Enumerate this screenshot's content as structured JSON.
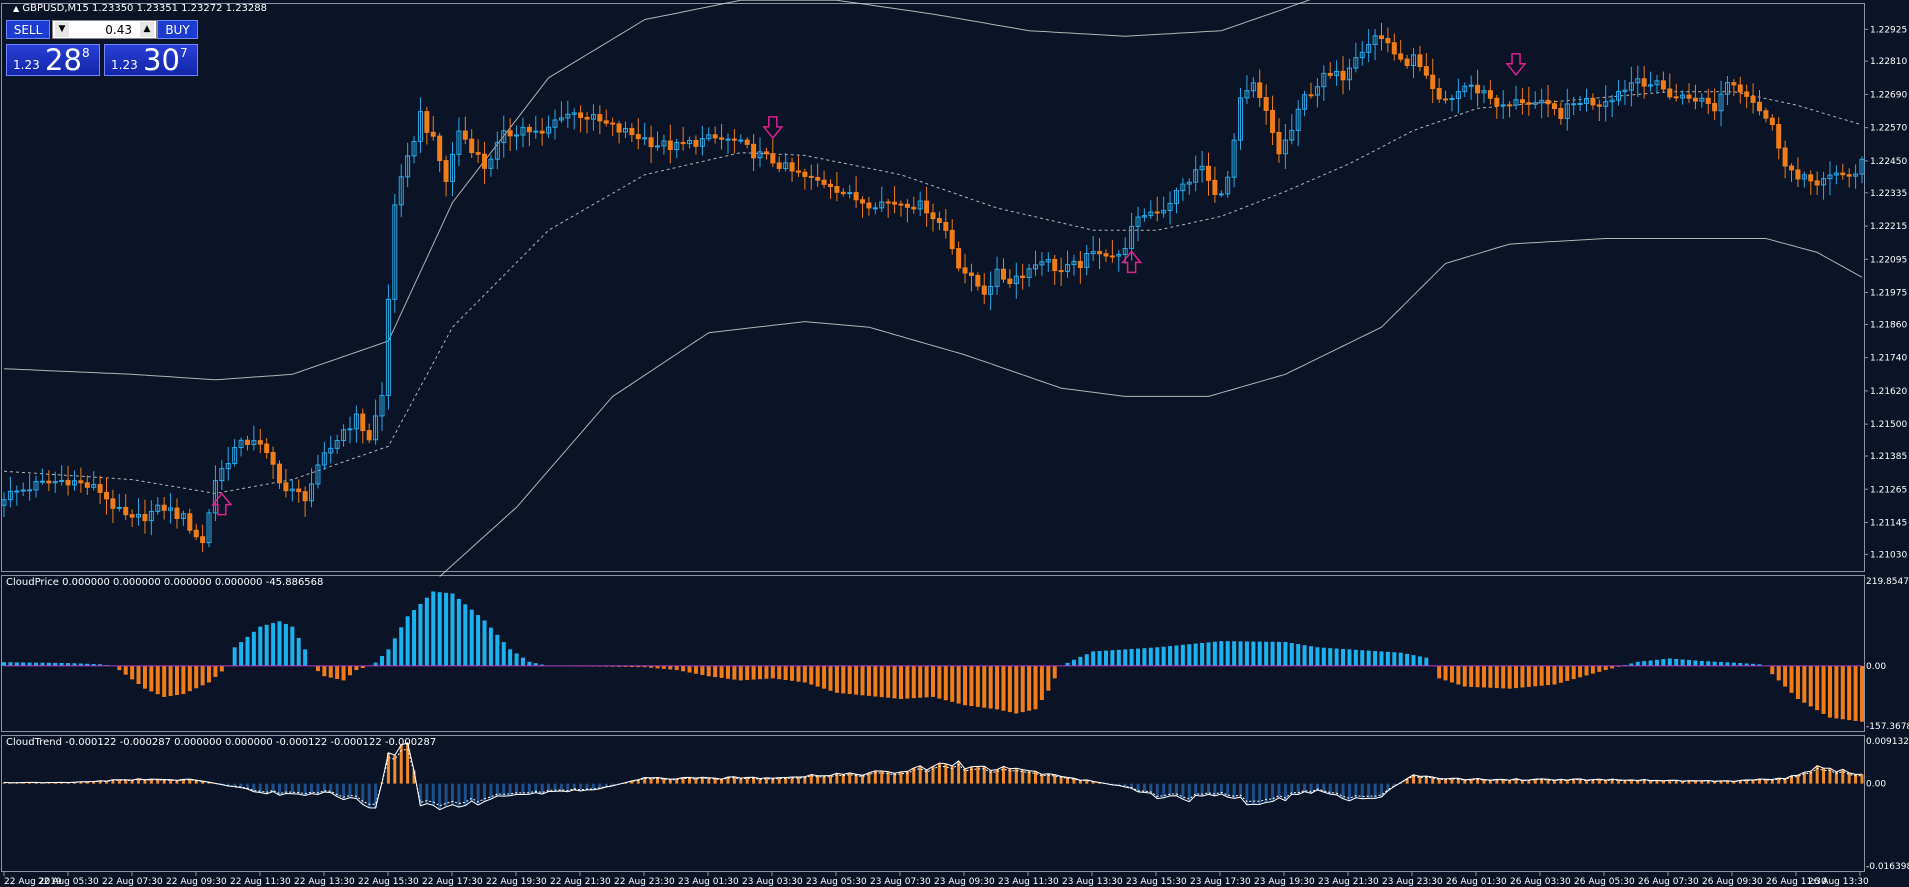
{
  "chart_header": {
    "symbol_line": "GBPUSD,M15  1.23350 1.23351 1.23272 1.23288",
    "cloudprice_line": "CloudPrice 0.000000 0.000000 0.000000 0.000000 -45.886568",
    "cloudtrend_line": "CloudTrend -0.000122 -0.000287 0.000000 0.000000 -0.000122 -0.000122 -0.000287"
  },
  "trade_panel": {
    "sell_label": "SELL",
    "buy_label": "BUY",
    "lot_value": "0.43",
    "sell_prefix": "1.23",
    "sell_big": "28",
    "sell_sup": "8",
    "buy_prefix": "1.23",
    "buy_big": "30",
    "buy_sup": "7"
  },
  "colors": {
    "background": "#0a1426",
    "bull": "#29a9e8",
    "bear": "#f07d1a",
    "hist_bull": "#1ab2f0",
    "hist_bear": "#f07d1a",
    "trend_bull": "#1d4f8c",
    "trend_bear": "#f08a2a",
    "band": "#d0d0d0",
    "signal_arrow": "#e0208f",
    "grid_border": "#8a93a6"
  },
  "chart_data": [
    {
      "type": "candlestick",
      "panel": "main",
      "ylim": [
        1.2097,
        1.2302
      ],
      "y_ticks": [
        "1.22925",
        "1.22810",
        "1.22690",
        "1.22570",
        "1.22450",
        "1.22335",
        "1.22215",
        "1.22095",
        "1.21975",
        "1.21860",
        "1.21740",
        "1.21620",
        "1.21500",
        "1.21385",
        "1.21265",
        "1.21145",
        "1.21030"
      ],
      "x_labels": [
        "22 Aug 2019",
        "22 Aug 05:30",
        "22 Aug 07:30",
        "22 Aug 09:30",
        "22 Aug 11:30",
        "22 Aug 13:30",
        "22 Aug 15:30",
        "22 Aug 17:30",
        "22 Aug 19:30",
        "22 Aug 21:30",
        "22 Aug 23:30",
        "23 Aug 01:30",
        "23 Aug 03:30",
        "23 Aug 05:30",
        "23 Aug 07:30",
        "23 Aug 09:30",
        "23 Aug 11:30",
        "23 Aug 13:30",
        "23 Aug 15:30",
        "23 Aug 17:30",
        "23 Aug 19:30",
        "23 Aug 21:30",
        "23 Aug 23:30",
        "26 Aug 01:30",
        "26 Aug 03:30",
        "26 Aug 05:30",
        "26 Aug 07:30",
        "26 Aug 09:30",
        "26 Aug 11:30",
        "26 Aug 13:30"
      ],
      "close_path": [
        [
          0,
          1.2124
        ],
        [
          5,
          1.2128
        ],
        [
          10,
          1.213
        ],
        [
          15,
          1.2126
        ],
        [
          18,
          1.2118
        ],
        [
          20,
          1.2115
        ],
        [
          25,
          1.212
        ],
        [
          28,
          1.2116
        ],
        [
          31,
          1.2107
        ],
        [
          33,
          1.213
        ],
        [
          36,
          1.2141
        ],
        [
          39,
          1.2145
        ],
        [
          42,
          1.2135
        ],
        [
          44,
          1.2126
        ],
        [
          47,
          1.2124
        ],
        [
          50,
          1.2138
        ],
        [
          53,
          1.2148
        ],
        [
          55,
          1.2152
        ],
        [
          57,
          1.2145
        ],
        [
          59,
          1.216
        ],
        [
          61,
          1.223
        ],
        [
          63,
          1.2245
        ],
        [
          65,
          1.2262
        ],
        [
          67,
          1.2252
        ],
        [
          69,
          1.2238
        ],
        [
          71,
          1.2256
        ],
        [
          73,
          1.225
        ],
        [
          75,
          1.2243
        ],
        [
          78,
          1.2254
        ],
        [
          81,
          1.2257
        ],
        [
          84,
          1.2254
        ],
        [
          87,
          1.2262
        ],
        [
          90,
          1.2262
        ],
        [
          93,
          1.2259
        ],
        [
          96,
          1.2256
        ],
        [
          99,
          1.2254
        ],
        [
          102,
          1.2251
        ],
        [
          105,
          1.225
        ],
        [
          108,
          1.2252
        ],
        [
          111,
          1.2253
        ],
        [
          114,
          1.2252
        ],
        [
          117,
          1.2248
        ],
        [
          120,
          1.2245
        ],
        [
          123,
          1.2241
        ],
        [
          126,
          1.2238
        ],
        [
          129,
          1.2237
        ],
        [
          132,
          1.2232
        ],
        [
          135,
          1.223
        ],
        [
          138,
          1.223
        ],
        [
          141,
          1.223
        ],
        [
          144,
          1.2228
        ],
        [
          147,
          1.222
        ],
        [
          149,
          1.2208
        ],
        [
          151,
          1.2202
        ],
        [
          153,
          1.2198
        ],
        [
          155,
          1.2204
        ],
        [
          157,
          1.2202
        ],
        [
          160,
          1.2206
        ],
        [
          162,
          1.221
        ],
        [
          165,
          1.2205
        ],
        [
          168,
          1.2208
        ],
        [
          171,
          1.2213
        ],
        [
          174,
          1.221
        ],
        [
          176,
          1.222
        ],
        [
          178,
          1.2226
        ],
        [
          181,
          1.2228
        ],
        [
          184,
          1.2236
        ],
        [
          187,
          1.2243
        ],
        [
          189,
          1.2232
        ],
        [
          191,
          1.2238
        ],
        [
          193,
          1.2266
        ],
        [
          195,
          1.2272
        ],
        [
          197,
          1.2262
        ],
        [
          199,
          1.2248
        ],
        [
          201,
          1.2256
        ],
        [
          203,
          1.2268
        ],
        [
          206,
          1.2275
        ],
        [
          209,
          1.2276
        ],
        [
          211,
          1.2284
        ],
        [
          214,
          1.229
        ],
        [
          216,
          1.2288
        ],
        [
          218,
          1.228
        ],
        [
          220,
          1.2282
        ],
        [
          222,
          1.2274
        ],
        [
          224,
          1.2266
        ],
        [
          226,
          1.2268
        ],
        [
          228,
          1.2272
        ],
        [
          231,
          1.227
        ],
        [
          234,
          1.2264
        ],
        [
          237,
          1.2267
        ],
        [
          240,
          1.2265
        ],
        [
          243,
          1.2262
        ],
        [
          246,
          1.2267
        ],
        [
          249,
          1.2266
        ],
        [
          252,
          1.227
        ],
        [
          255,
          1.2275
        ],
        [
          258,
          1.2272
        ],
        [
          261,
          1.2268
        ],
        [
          264,
          1.2268
        ],
        [
          267,
          1.2264
        ],
        [
          269,
          1.2274
        ],
        [
          272,
          1.227
        ],
        [
          274,
          1.2264
        ],
        [
          276,
          1.2257
        ],
        [
          278,
          1.2245
        ],
        [
          280,
          1.2238
        ],
        [
          283,
          1.2238
        ],
        [
          286,
          1.2239
        ],
        [
          289,
          1.2241
        ],
        [
          290,
          1.2245
        ]
      ],
      "middle_band": [
        [
          0,
          1.2133
        ],
        [
          20,
          1.213
        ],
        [
          33,
          1.2125
        ],
        [
          45,
          1.213
        ],
        [
          60,
          1.2142
        ],
        [
          70,
          1.2185
        ],
        [
          85,
          1.222
        ],
        [
          100,
          1.224
        ],
        [
          115,
          1.2248
        ],
        [
          125,
          1.2247
        ],
        [
          140,
          1.224
        ],
        [
          155,
          1.2228
        ],
        [
          170,
          1.222
        ],
        [
          180,
          1.222
        ],
        [
          190,
          1.2225
        ],
        [
          200,
          1.2234
        ],
        [
          210,
          1.2244
        ],
        [
          220,
          1.2256
        ],
        [
          230,
          1.2264
        ],
        [
          245,
          1.2267
        ],
        [
          260,
          1.227
        ],
        [
          270,
          1.227
        ],
        [
          280,
          1.2265
        ],
        [
          290,
          1.2258
        ]
      ],
      "upper_band": [
        [
          0,
          1.217
        ],
        [
          20,
          1.2168
        ],
        [
          33,
          1.2166
        ],
        [
          45,
          1.2168
        ],
        [
          60,
          1.218
        ],
        [
          70,
          1.223
        ],
        [
          85,
          1.2275
        ],
        [
          100,
          1.2296
        ],
        [
          115,
          1.2303
        ],
        [
          130,
          1.2303
        ],
        [
          145,
          1.2298
        ],
        [
          160,
          1.2292
        ],
        [
          175,
          1.229
        ],
        [
          190,
          1.2292
        ],
        [
          200,
          1.23
        ],
        [
          206,
          1.2305
        ]
      ],
      "lower_band": [
        [
          68,
          1.2095
        ],
        [
          80,
          1.212
        ],
        [
          95,
          1.216
        ],
        [
          110,
          1.2183
        ],
        [
          125,
          1.2187
        ],
        [
          135,
          1.2185
        ],
        [
          150,
          1.2175
        ],
        [
          165,
          1.2163
        ],
        [
          175,
          1.216
        ],
        [
          188,
          1.216
        ],
        [
          200,
          1.2168
        ],
        [
          215,
          1.2185
        ],
        [
          225,
          1.2208
        ],
        [
          235,
          1.2215
        ],
        [
          250,
          1.2217
        ],
        [
          265,
          1.2217
        ],
        [
          275,
          1.2217
        ],
        [
          283,
          1.2212
        ],
        [
          290,
          1.2203
        ]
      ],
      "signals": [
        {
          "bar": 34,
          "dir": "up"
        },
        {
          "bar": 120,
          "dir": "down"
        },
        {
          "bar": 176,
          "dir": "up"
        },
        {
          "bar": 236,
          "dir": "down"
        }
      ]
    },
    {
      "type": "histogram",
      "panel": "CloudPrice",
      "ylim": [
        -157.3678,
        219.85472
      ],
      "y_ticks": [
        "219.85472",
        "0.00",
        "-157.3678"
      ],
      "profile": [
        [
          0,
          9
        ],
        [
          10,
          7
        ],
        [
          15,
          4
        ],
        [
          17,
          0
        ],
        [
          18,
          -10
        ],
        [
          22,
          -55
        ],
        [
          25,
          -75
        ],
        [
          28,
          -68
        ],
        [
          32,
          -40
        ],
        [
          35,
          0
        ],
        [
          36,
          45
        ],
        [
          40,
          95
        ],
        [
          43,
          108
        ],
        [
          45,
          95
        ],
        [
          47,
          40
        ],
        [
          48,
          0
        ],
        [
          50,
          -25
        ],
        [
          53,
          -35
        ],
        [
          55,
          -10
        ],
        [
          57,
          0
        ],
        [
          58,
          8
        ],
        [
          60,
          40
        ],
        [
          63,
          120
        ],
        [
          67,
          180
        ],
        [
          70,
          175
        ],
        [
          75,
          110
        ],
        [
          79,
          40
        ],
        [
          82,
          10
        ],
        [
          85,
          0
        ],
        [
          100,
          -3
        ],
        [
          105,
          -10
        ],
        [
          110,
          -25
        ],
        [
          115,
          -35
        ],
        [
          120,
          -30
        ],
        [
          125,
          -40
        ],
        [
          130,
          -65
        ],
        [
          140,
          -80
        ],
        [
          145,
          -75
        ],
        [
          150,
          -95
        ],
        [
          155,
          -105
        ],
        [
          158,
          -115
        ],
        [
          161,
          -105
        ],
        [
          163,
          -60
        ],
        [
          165,
          0
        ],
        [
          167,
          15
        ],
        [
          170,
          35
        ],
        [
          180,
          45
        ],
        [
          190,
          60
        ],
        [
          200,
          58
        ],
        [
          205,
          45
        ],
        [
          212,
          38
        ],
        [
          218,
          32
        ],
        [
          222,
          20
        ],
        [
          223,
          0
        ],
        [
          224,
          -30
        ],
        [
          228,
          -50
        ],
        [
          235,
          -55
        ],
        [
          242,
          -45
        ],
        [
          250,
          -10
        ],
        [
          255,
          10
        ],
        [
          260,
          18
        ],
        [
          265,
          12
        ],
        [
          270,
          8
        ],
        [
          274,
          4
        ],
        [
          275,
          0
        ],
        [
          276,
          -20
        ],
        [
          280,
          -80
        ],
        [
          285,
          -125
        ],
        [
          290,
          -135
        ]
      ]
    },
    {
      "type": "histogram",
      "panel": "CloudTrend",
      "ylim": [
        -0.016398,
        0.009132
      ],
      "y_ticks": [
        "0.009132",
        "0.00",
        "-0.016398"
      ],
      "profile": [
        [
          0,
          0.0002
        ],
        [
          10,
          0.0002
        ],
        [
          20,
          0.0008
        ],
        [
          30,
          0.0007
        ],
        [
          35,
          -0.0004
        ],
        [
          40,
          -0.0015
        ],
        [
          45,
          -0.0022
        ],
        [
          50,
          -0.0018
        ],
        [
          55,
          -0.003
        ],
        [
          58,
          -0.0048
        ],
        [
          60,
          0.0052
        ],
        [
          63,
          0.0088
        ],
        [
          65,
          -0.0035
        ],
        [
          68,
          -0.005
        ],
        [
          72,
          -0.0038
        ],
        [
          78,
          -0.0025
        ],
        [
          85,
          -0.0015
        ],
        [
          92,
          -0.0012
        ],
        [
          100,
          0.001
        ],
        [
          110,
          0.001
        ],
        [
          120,
          0.0012
        ],
        [
          130,
          0.0018
        ],
        [
          140,
          0.0022
        ],
        [
          148,
          0.0038
        ],
        [
          152,
          0.003
        ],
        [
          158,
          0.0028
        ],
        [
          163,
          0.0018
        ],
        [
          168,
          0.0008
        ],
        [
          174,
          -0.0004
        ],
        [
          180,
          -0.0025
        ],
        [
          185,
          -0.003
        ],
        [
          190,
          -0.0018
        ],
        [
          195,
          -0.004
        ],
        [
          200,
          -0.0028
        ],
        [
          205,
          -0.0012
        ],
        [
          210,
          -0.003
        ],
        [
          215,
          -0.0022
        ],
        [
          220,
          0.0018
        ],
        [
          225,
          0.001
        ],
        [
          230,
          0.0008
        ],
        [
          240,
          0.0008
        ],
        [
          250,
          0.0008
        ],
        [
          260,
          0.0006
        ],
        [
          270,
          0.0005
        ],
        [
          278,
          0.001
        ],
        [
          283,
          0.003
        ],
        [
          288,
          0.0022
        ],
        [
          290,
          0.0016
        ]
      ]
    }
  ]
}
